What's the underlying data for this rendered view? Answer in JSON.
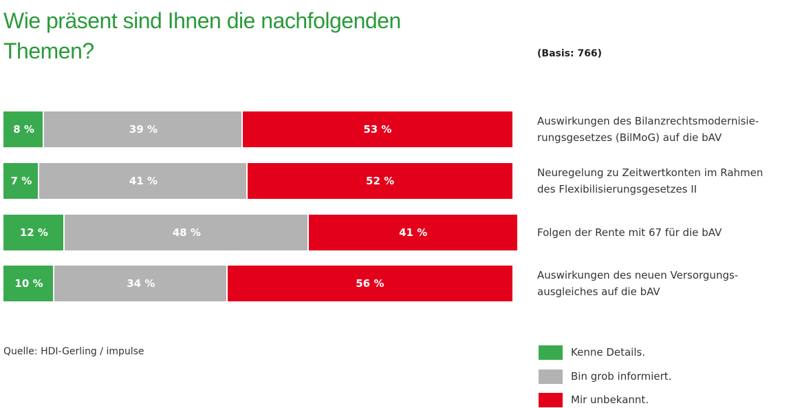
{
  "chart_data": {
    "type": "stacked-bar-horizontal",
    "title": "Wie präsent sind Ihnen die nachfolgenden\nThemen?",
    "subtitle": "(Basis: 766)",
    "source": "Quelle: HDI-Gerling / impulse",
    "categories": [
      "Auswirkungen des Bilanzrechtsmodernisie-\nrungsgesetzes (BilMoG) auf die bAV",
      "Neuregelung zu Zeitwertkonten im Rahmen\ndes Flexibilisierungsgesetzes II",
      "Folgen der Rente mit 67 für die bAV",
      "Auswirkungen des neuen Versorgungs-\nausgleiches auf die bAV"
    ],
    "xlim": [
      0,
      100
    ],
    "series": [
      {
        "name": "Kenne Details.",
        "color": "#3aaa4f",
        "values": [
          8,
          7,
          12,
          10
        ],
        "value_labels": [
          "8 %",
          "7 %",
          "12 %",
          "10 %"
        ]
      },
      {
        "name": "Bin grob informiert.",
        "color": "#b3b3b3",
        "values": [
          39,
          41,
          48,
          34
        ],
        "value_labels": [
          "39 %",
          "41 %",
          "48 %",
          "34 %"
        ]
      },
      {
        "name": "Mir unbekannt.",
        "color": "#e3001b",
        "values": [
          53,
          52,
          41,
          56
        ],
        "value_labels": [
          "53 %",
          "52 %",
          "41 %",
          "56 %"
        ]
      }
    ]
  }
}
